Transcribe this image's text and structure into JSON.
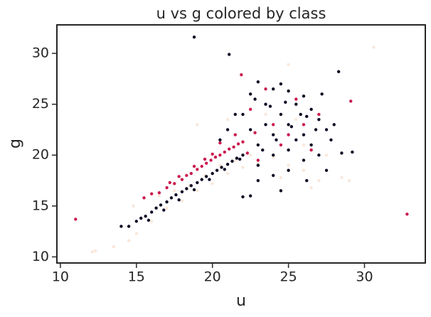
{
  "chart_data": {
    "type": "scatter",
    "title": "u vs g colored by class",
    "x_label": "u",
    "y_label": "g",
    "xlim": [
      9.77,
      34.0
    ],
    "ylim": [
      9.4,
      32.8
    ],
    "xticks": [
      10,
      15,
      20,
      25,
      30
    ],
    "yticks": [
      10,
      15,
      20,
      25,
      30
    ],
    "grid": false,
    "series": [
      {
        "color": "#fae7da",
        "x": [
          12.3,
          12.1,
          13.5,
          14.5,
          15.0,
          16.0,
          17.0,
          18.0,
          19.0,
          20.0,
          21.0,
          22.0,
          23.0,
          24.0,
          25.0,
          26.0,
          27.0,
          28.5,
          29.0,
          30.6,
          25.0,
          14.8,
          15.5,
          16.5,
          17.5,
          18.5,
          19.5,
          20.5,
          21.5,
          22.5,
          24.5,
          26.5,
          27.5,
          23.5,
          25.5,
          19.0,
          21.0,
          26.0
        ],
        "values": [
          10.6,
          10.5,
          11.0,
          11.6,
          12.3,
          13.5,
          14.8,
          15.5,
          16.5,
          17.2,
          18.2,
          18.8,
          19.2,
          19.8,
          19.0,
          18.5,
          17.5,
          17.8,
          17.5,
          30.6,
          28.9,
          15.0,
          15.8,
          16.0,
          16.5,
          17.0,
          18.0,
          19.0,
          19.5,
          20.0,
          17.8,
          16.8,
          20.0,
          24.0,
          23.5,
          23.0,
          23.5,
          21.0
        ]
      },
      {
        "color": "#cb1b4f",
        "x": [
          11.0,
          32.8,
          29.1,
          16.5,
          17.0,
          17.5,
          18.0,
          18.3,
          18.6,
          19.0,
          19.3,
          19.6,
          19.9,
          20.2,
          20.5,
          20.8,
          21.1,
          21.4,
          21.7,
          22.0,
          20.0,
          19.5,
          18.8,
          17.8,
          17.2,
          16.0,
          15.5,
          21.9,
          22.5,
          23.5,
          24.0,
          25.0,
          26.5,
          27.0,
          25.5,
          23.0,
          24.5,
          22.8,
          26.0,
          21.5,
          20.5,
          22.3
        ],
        "values": [
          13.7,
          14.2,
          25.3,
          16.3,
          16.8,
          17.2,
          17.6,
          18.0,
          18.2,
          18.6,
          18.9,
          19.2,
          19.5,
          19.8,
          20.0,
          20.3,
          20.6,
          20.8,
          21.1,
          21.3,
          20.1,
          19.6,
          18.9,
          17.9,
          17.3,
          16.2,
          15.8,
          27.9,
          24.5,
          26.5,
          23.0,
          22.0,
          20.5,
          24.0,
          25.5,
          19.5,
          21.0,
          22.2,
          23.0,
          22.0,
          21.2,
          20.2
        ]
      },
      {
        "color": "#0d0a24",
        "x": [
          18.8,
          21.1,
          14.0,
          14.5,
          15.0,
          15.3,
          15.6,
          16.0,
          16.3,
          16.6,
          17.0,
          17.3,
          17.6,
          18.0,
          18.3,
          18.6,
          19.0,
          19.3,
          19.6,
          20.0,
          20.3,
          20.6,
          21.0,
          21.3,
          21.6,
          22.0,
          15.8,
          16.8,
          17.8,
          18.8,
          19.8,
          20.8,
          21.8,
          22.0,
          22.5,
          23.0,
          23.5,
          24.0,
          24.5,
          25.0,
          25.5,
          26.0,
          26.5,
          27.0,
          27.5,
          28.0,
          28.3,
          27.8,
          27.0,
          26.0,
          25.0,
          24.0,
          23.0,
          22.5,
          22.0,
          24.5,
          26.2,
          28.5,
          29.2,
          27.5,
          23.0,
          24.0,
          25.0,
          26.0,
          23.5,
          24.5,
          25.5,
          26.5,
          23.0,
          24.0,
          25.0,
          22.5,
          21.5,
          21.0,
          20.5,
          23.8,
          24.8,
          25.8,
          26.8,
          27.2,
          22.8,
          24.2,
          25.2,
          26.2,
          23.3
        ],
        "values": [
          31.6,
          29.9,
          13.0,
          13.0,
          13.5,
          13.8,
          14.0,
          14.4,
          14.8,
          15.1,
          15.4,
          15.8,
          16.1,
          16.4,
          16.7,
          17.0,
          17.3,
          17.6,
          17.9,
          18.2,
          18.5,
          18.8,
          19.1,
          19.4,
          19.7,
          20.0,
          13.6,
          14.6,
          15.6,
          16.6,
          17.6,
          18.6,
          19.6,
          24.0,
          26.0,
          27.2,
          25.0,
          26.5,
          27.0,
          26.3,
          25.0,
          25.8,
          24.5,
          23.5,
          22.5,
          23.0,
          28.2,
          21.5,
          20.0,
          19.5,
          18.5,
          18.0,
          17.5,
          16.0,
          15.9,
          16.5,
          17.5,
          20.2,
          20.3,
          18.5,
          21.0,
          22.0,
          23.0,
          22.0,
          23.0,
          24.0,
          21.5,
          21.0,
          19.0,
          20.0,
          20.5,
          22.5,
          24.0,
          22.5,
          21.5,
          24.8,
          25.2,
          24.0,
          22.5,
          26.0,
          25.5,
          21.5,
          22.8,
          23.8,
          20.5
        ]
      }
    ]
  }
}
